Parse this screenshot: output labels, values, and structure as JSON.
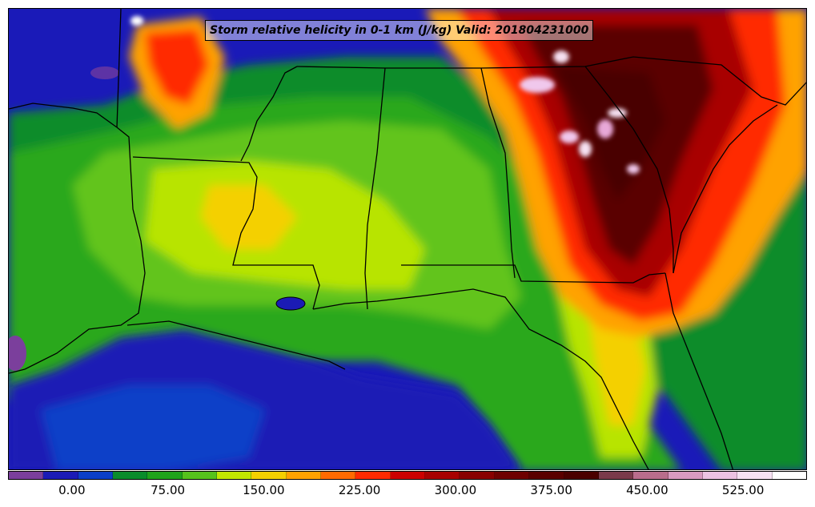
{
  "title": "Storm relative helicity in 0-1 km (J/kg) Valid: 201804231000",
  "colorbar": {
    "colors": [
      "#7b3f9c",
      "#1b1bb5",
      "#0b3fc8",
      "#0a8c2b",
      "#1fa31a",
      "#56c21c",
      "#c2e800",
      "#f4d000",
      "#ffa200",
      "#ff6a00",
      "#ff2a00",
      "#cc0000",
      "#a80000",
      "#880000",
      "#6e0000",
      "#5a0000",
      "#4a0000",
      "#7a3a4a",
      "#b96d8c",
      "#d99ac0",
      "#ecc2e2",
      "#f6e1f2",
      "#ffffff"
    ],
    "tick_labels": [
      "0.00",
      "75.00",
      "150.00",
      "225.00",
      "300.00",
      "375.00",
      "450.00",
      "525.00"
    ],
    "tick_values": [
      0,
      75,
      150,
      225,
      300,
      375,
      450,
      525
    ],
    "min": -50,
    "max": 575
  }
}
